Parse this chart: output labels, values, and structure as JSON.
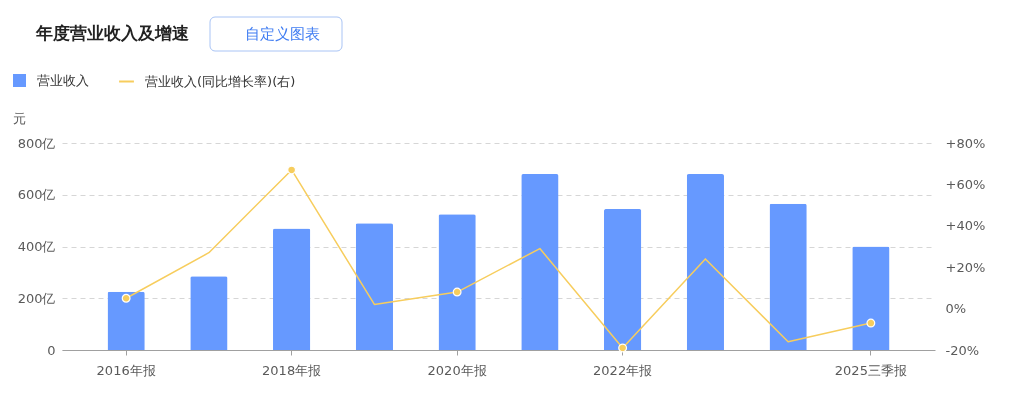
{
  "chart_data": {
    "type": "bar",
    "title": "年度营业收入及增速",
    "annotations": [
      "自定义图表"
    ],
    "ylabel": "元",
    "categories": [
      "2016年报",
      null,
      "2018年报",
      null,
      "2020年报",
      null,
      "2022年报",
      null,
      null,
      "2025三季报"
    ],
    "series": [
      {
        "name": "营业收入",
        "color": "#6699ff",
        "values": [
          225,
          285,
          470,
          490,
          525,
          680,
          545,
          680,
          565,
          400
        ]
      },
      {
        "name": "营业收入(同比增长率)(右)",
        "type": "line",
        "axis": "y2",
        "color": "#f7cd5d",
        "marker": "circle",
        "values": [
          5,
          27,
          67,
          2,
          8,
          29,
          -19,
          24,
          -16,
          -7
        ]
      }
    ],
    "ylim": [
      0,
      800
    ],
    "yticks": [
      0,
      {
        "value": 200,
        "label": "200亿"
      },
      {
        "value": 400,
        "label": "400亿"
      },
      {
        "value": 600,
        "label": "600亿"
      },
      {
        "value": 800,
        "label": "800亿"
      }
    ],
    "y2lim": [
      -20,
      80
    ],
    "y2ticks": [
      {
        "value": -20,
        "label": "-20%"
      },
      {
        "value": 0,
        "label": "0%"
      },
      {
        "value": 20,
        "label": "+20%"
      },
      {
        "value": 40,
        "label": "+40%"
      },
      {
        "value": 60,
        "label": "+60%"
      },
      {
        "value": 80,
        "label": "+80%"
      }
    ],
    "grid": "y",
    "legend": "top left"
  }
}
